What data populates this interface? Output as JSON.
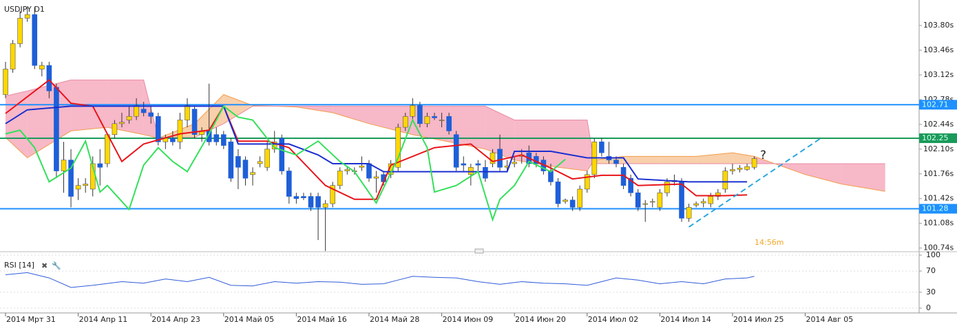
{
  "chart_data": [
    {
      "type": "candlestick",
      "title": "USDJPY D1",
      "timer": "14:56m",
      "annotation": "?",
      "up_color": "#ffd700",
      "down_color": "#1e5fd8",
      "xlim": [
        -0.76,
        125.67
      ],
      "ylim": [
        100.68,
        104.15
      ],
      "yticks": [
        {
          "value": 103.8,
          "label": "103.80s"
        },
        {
          "value": 103.46,
          "label": "103.46s"
        },
        {
          "value": 103.12,
          "label": "103.12s"
        },
        {
          "value": 102.78,
          "label": "102.78s"
        },
        {
          "value": 102.44,
          "label": "102.44s"
        },
        {
          "value": 102.1,
          "label": "102.10s"
        },
        {
          "value": 101.76,
          "label": "101.76s"
        },
        {
          "value": 101.42,
          "label": "101.42s"
        },
        {
          "value": 101.08,
          "label": "101.08s"
        },
        {
          "value": 100.74,
          "label": "100.74s"
        }
      ],
      "ohlc": [
        [
          102.85,
          103.3,
          102.8,
          103.2
        ],
        [
          103.2,
          103.6,
          103.15,
          103.55
        ],
        [
          103.55,
          104.0,
          103.5,
          103.9
        ],
        [
          103.9,
          104.05,
          103.85,
          103.95
        ],
        [
          103.95,
          104.05,
          103.2,
          103.25
        ],
        [
          103.2,
          103.3,
          103.1,
          103.25
        ],
        [
          103.25,
          103.3,
          102.8,
          102.9
        ],
        [
          102.95,
          103.0,
          101.7,
          101.8
        ],
        [
          101.8,
          102.2,
          101.5,
          101.95
        ],
        [
          101.95,
          102.1,
          101.3,
          101.45
        ],
        [
          101.55,
          101.7,
          101.4,
          101.6
        ],
        [
          101.6,
          101.7,
          101.5,
          101.62
        ],
        [
          101.55,
          102.0,
          101.45,
          101.9
        ],
        [
          101.9,
          102.1,
          101.6,
          101.85
        ],
        [
          101.9,
          102.3,
          101.85,
          102.3
        ],
        [
          102.3,
          102.5,
          102.25,
          102.45
        ],
        [
          102.45,
          102.6,
          102.4,
          102.47
        ],
        [
          102.5,
          102.7,
          102.45,
          102.55
        ],
        [
          102.55,
          102.8,
          102.5,
          102.7
        ],
        [
          102.65,
          102.75,
          102.55,
          102.6
        ],
        [
          102.6,
          102.7,
          102.45,
          102.55
        ],
        [
          102.55,
          102.6,
          102.15,
          102.2
        ],
        [
          102.2,
          102.3,
          102.1,
          102.25
        ],
        [
          102.25,
          102.35,
          102.15,
          102.2
        ],
        [
          102.2,
          102.6,
          102.1,
          102.5
        ],
        [
          102.5,
          102.8,
          102.4,
          102.7
        ],
        [
          102.65,
          102.7,
          102.25,
          102.3
        ],
        [
          102.3,
          102.4,
          102.2,
          102.35
        ],
        [
          102.35,
          103.0,
          102.15,
          102.2
        ],
        [
          102.3,
          102.4,
          102.15,
          102.2
        ],
        [
          102.3,
          102.35,
          102.1,
          102.15
        ],
        [
          102.2,
          102.25,
          101.65,
          101.7
        ],
        [
          102.0,
          102.1,
          101.55,
          101.85
        ],
        [
          101.95,
          102.0,
          101.6,
          101.7
        ],
        [
          101.75,
          101.85,
          101.6,
          101.78
        ],
        [
          101.9,
          102.0,
          101.85,
          101.93
        ],
        [
          101.85,
          102.2,
          101.8,
          102.1
        ],
        [
          102.1,
          102.35,
          102.05,
          102.2
        ],
        [
          102.25,
          102.3,
          101.75,
          101.8
        ],
        [
          101.8,
          101.85,
          101.35,
          101.45
        ],
        [
          101.45,
          101.5,
          101.35,
          101.42
        ],
        [
          101.45,
          101.5,
          101.4,
          101.43
        ],
        [
          101.45,
          101.5,
          101.25,
          101.3
        ],
        [
          101.45,
          101.5,
          100.85,
          101.3
        ],
        [
          101.3,
          101.4,
          100.7,
          101.35
        ],
        [
          101.35,
          101.65,
          101.3,
          101.6
        ],
        [
          101.6,
          101.85,
          101.55,
          101.8
        ],
        [
          101.8,
          101.85,
          101.75,
          101.82
        ],
        [
          101.8,
          101.85,
          101.75,
          101.8
        ],
        [
          101.85,
          102.0,
          101.8,
          101.87
        ],
        [
          101.9,
          101.95,
          101.65,
          101.7
        ],
        [
          101.7,
          101.8,
          101.5,
          101.72
        ],
        [
          101.75,
          101.8,
          101.6,
          101.65
        ],
        [
          101.75,
          101.95,
          101.7,
          101.9
        ],
        [
          101.85,
          102.45,
          101.8,
          102.4
        ],
        [
          102.4,
          102.6,
          102.35,
          102.55
        ],
        [
          102.55,
          102.8,
          102.5,
          102.7
        ],
        [
          102.7,
          102.75,
          102.4,
          102.45
        ],
        [
          102.45,
          102.6,
          102.4,
          102.55
        ],
        [
          102.55,
          102.6,
          102.5,
          102.53
        ],
        [
          102.5,
          102.6,
          102.4,
          102.5
        ],
        [
          102.55,
          102.6,
          102.3,
          102.35
        ],
        [
          102.3,
          102.35,
          101.8,
          101.85
        ],
        [
          101.9,
          102.0,
          101.8,
          101.88
        ],
        [
          101.75,
          101.9,
          101.6,
          101.85
        ],
        [
          101.9,
          101.95,
          101.8,
          101.88
        ],
        [
          101.85,
          101.95,
          101.65,
          101.7
        ],
        [
          101.9,
          102.1,
          101.85,
          102.05
        ],
        [
          102.1,
          102.3,
          101.8,
          101.85
        ],
        [
          101.85,
          101.95,
          101.8,
          101.87
        ],
        [
          101.9,
          102.0,
          101.85,
          101.92
        ],
        [
          102.0,
          102.1,
          101.9,
          102.02
        ],
        [
          102.05,
          102.15,
          101.85,
          101.9
        ],
        [
          102.0,
          102.05,
          101.85,
          101.9
        ],
        [
          101.95,
          102.0,
          101.75,
          101.8
        ],
        [
          101.8,
          101.9,
          101.6,
          101.65
        ],
        [
          101.65,
          101.7,
          101.3,
          101.35
        ],
        [
          101.38,
          101.42,
          101.35,
          101.4
        ],
        [
          101.4,
          101.45,
          101.25,
          101.3
        ],
        [
          101.3,
          101.6,
          101.25,
          101.55
        ],
        [
          101.55,
          101.8,
          101.5,
          101.75
        ],
        [
          101.75,
          102.25,
          101.7,
          102.2
        ],
        [
          102.2,
          102.25,
          102.0,
          102.05
        ],
        [
          102.0,
          102.2,
          101.9,
          101.95
        ],
        [
          101.95,
          102.0,
          101.85,
          101.9
        ],
        [
          101.85,
          101.9,
          101.55,
          101.6
        ],
        [
          101.7,
          101.75,
          101.45,
          101.5
        ],
        [
          101.5,
          101.55,
          101.25,
          101.3
        ],
        [
          101.35,
          101.4,
          101.1,
          101.35
        ],
        [
          101.38,
          101.42,
          101.3,
          101.38
        ],
        [
          101.3,
          101.55,
          101.25,
          101.5
        ],
        [
          101.5,
          101.7,
          101.45,
          101.65
        ],
        [
          101.65,
          101.75,
          101.6,
          101.67
        ],
        [
          101.65,
          101.7,
          101.1,
          101.15
        ],
        [
          101.15,
          101.35,
          101.1,
          101.3
        ],
        [
          101.33,
          101.38,
          101.3,
          101.35
        ],
        [
          101.36,
          101.42,
          101.3,
          101.38
        ],
        [
          101.35,
          101.5,
          101.3,
          101.45
        ],
        [
          101.45,
          101.55,
          101.4,
          101.5
        ],
        [
          101.55,
          101.85,
          101.5,
          101.8
        ],
        [
          101.8,
          101.9,
          101.75,
          101.82
        ],
        [
          101.82,
          101.88,
          101.78,
          101.84
        ],
        [
          101.82,
          101.9,
          101.8,
          101.86
        ],
        [
          101.85,
          102.0,
          101.82,
          101.97
        ]
      ],
      "cloud": {
        "color_up": "#f6c08f",
        "color_down": "#f4a0b5",
        "line_a": "#f39c4a",
        "line_b": "#e88aa3",
        "x": [
          0,
          3,
          9,
          14,
          19,
          21,
          26,
          30,
          34,
          40,
          45,
          50,
          56,
          61,
          66,
          70,
          76,
          80,
          81,
          85,
          90,
          95,
          100,
          103,
          110,
          115,
          121
        ],
        "span_a": [
          102.26,
          101.98,
          102.35,
          102.4,
          102.3,
          102.25,
          102.45,
          102.85,
          102.7,
          102.68,
          102.6,
          102.45,
          102.3,
          102.2,
          102.1,
          101.95,
          101.85,
          101.8,
          101.95,
          102.0,
          102.0,
          102.0,
          102.05,
          102.0,
          101.75,
          101.62,
          101.52
        ],
        "span_b": [
          102.83,
          102.9,
          103.05,
          103.05,
          103.05,
          102.26,
          102.26,
          102.45,
          102.69,
          102.69,
          102.69,
          102.69,
          102.69,
          102.69,
          102.69,
          102.5,
          102.5,
          102.5,
          101.9,
          101.9,
          101.9,
          101.9,
          101.9,
          101.9,
          101.9,
          101.9,
          101.9
        ]
      },
      "overlays": [
        {
          "color": "#e8141a",
          "x": [
            0,
            6,
            9,
            12,
            16,
            19,
            24,
            28,
            30,
            32,
            36,
            39,
            44,
            48,
            51,
            53,
            59,
            64,
            67,
            71,
            75,
            78,
            82,
            85,
            87,
            93,
            95,
            99,
            102
          ],
          "values": [
            102.59,
            103.05,
            102.73,
            102.69,
            101.93,
            102.17,
            102.31,
            102.36,
            102.69,
            102.21,
            102.21,
            102.12,
            101.6,
            101.41,
            101.41,
            101.88,
            102.12,
            102.17,
            101.93,
            102.02,
            101.84,
            101.69,
            101.74,
            101.74,
            101.6,
            101.62,
            101.46,
            101.46,
            101.47
          ]
        },
        {
          "color": "#1a2fd0",
          "x": [
            0,
            3,
            9,
            30,
            32,
            39,
            43,
            45,
            50,
            52,
            69,
            70,
            75,
            80,
            85,
            87,
            94,
            102
          ],
          "values": [
            102.45,
            102.64,
            102.69,
            102.69,
            102.17,
            102.17,
            102.02,
            101.9,
            101.9,
            101.79,
            101.79,
            102.07,
            102.07,
            101.98,
            101.98,
            101.69,
            101.65,
            101.65
          ]
        },
        {
          "color": "#33e05a",
          "x": [
            0,
            2,
            4,
            6,
            9,
            11,
            13,
            14,
            17,
            19,
            21,
            23,
            25,
            28,
            30,
            32,
            34,
            37,
            40,
            43,
            46,
            48,
            51,
            54,
            56,
            58,
            59,
            62,
            65,
            67,
            68,
            70,
            72,
            75,
            77
          ],
          "values": [
            102.31,
            102.36,
            102.12,
            101.65,
            101.84,
            102.21,
            101.51,
            101.6,
            101.27,
            101.88,
            102.12,
            101.93,
            101.79,
            102.31,
            102.69,
            102.54,
            102.5,
            102.12,
            102.02,
            102.21,
            101.93,
            101.79,
            101.36,
            101.98,
            102.5,
            102.12,
            101.51,
            101.6,
            101.79,
            101.13,
            101.41,
            101.6,
            101.93,
            101.79,
            101.96
          ]
        }
      ],
      "levels": [
        {
          "value": 102.71,
          "color": "#1e90ff"
        },
        {
          "value": 102.25,
          "color": "#1a9a5a"
        },
        {
          "value": 101.28,
          "color": "#1e90ff"
        }
      ],
      "trendline": {
        "color": "#2aa7e0",
        "x": [
          94,
          112
        ],
        "values": [
          101.03,
          102.24
        ]
      }
    },
    {
      "type": "line",
      "title": "RSI [14]",
      "color": "#2e5bd8",
      "xlim": [
        -0.76,
        125.67
      ],
      "ylim": [
        0,
        100
      ],
      "yticks": [
        100,
        70,
        30,
        0
      ],
      "x": [
        0,
        3,
        6,
        9,
        12,
        16,
        19,
        22,
        25,
        28,
        31,
        34,
        37,
        40,
        43,
        46,
        49,
        52,
        54,
        56,
        59,
        62,
        65,
        68,
        71,
        74,
        77,
        80,
        82,
        84,
        87,
        90,
        93,
        96,
        99,
        102,
        103
      ],
      "values": [
        63,
        67,
        57,
        39,
        43,
        50,
        47,
        55,
        50,
        58,
        43,
        42,
        50,
        47,
        50,
        49,
        45,
        46,
        53,
        60,
        58,
        57,
        50,
        45,
        50,
        47,
        46,
        43,
        50,
        57,
        53,
        46,
        50,
        46,
        55,
        57,
        60
      ],
      "xticks": [
        {
          "value": 0,
          "label": "2014 Мрт 31"
        },
        {
          "value": 10,
          "label": "2014 Апр 11"
        },
        {
          "value": 20,
          "label": "2014 Апр 23"
        },
        {
          "value": 30,
          "label": "2014 Май 05"
        },
        {
          "value": 40,
          "label": "2014 Май 16"
        },
        {
          "value": 50,
          "label": "2014 Май 28"
        },
        {
          "value": 60,
          "label": "2014 Июн 09"
        },
        {
          "value": 70,
          "label": "2014 Июн 20"
        },
        {
          "value": 80,
          "label": "2014 Июл 02"
        },
        {
          "value": 90,
          "label": "2014 Июл 14"
        },
        {
          "value": 100,
          "label": "2014 Июл 25"
        },
        {
          "value": 110,
          "label": "2014 Авг 05"
        }
      ]
    }
  ]
}
